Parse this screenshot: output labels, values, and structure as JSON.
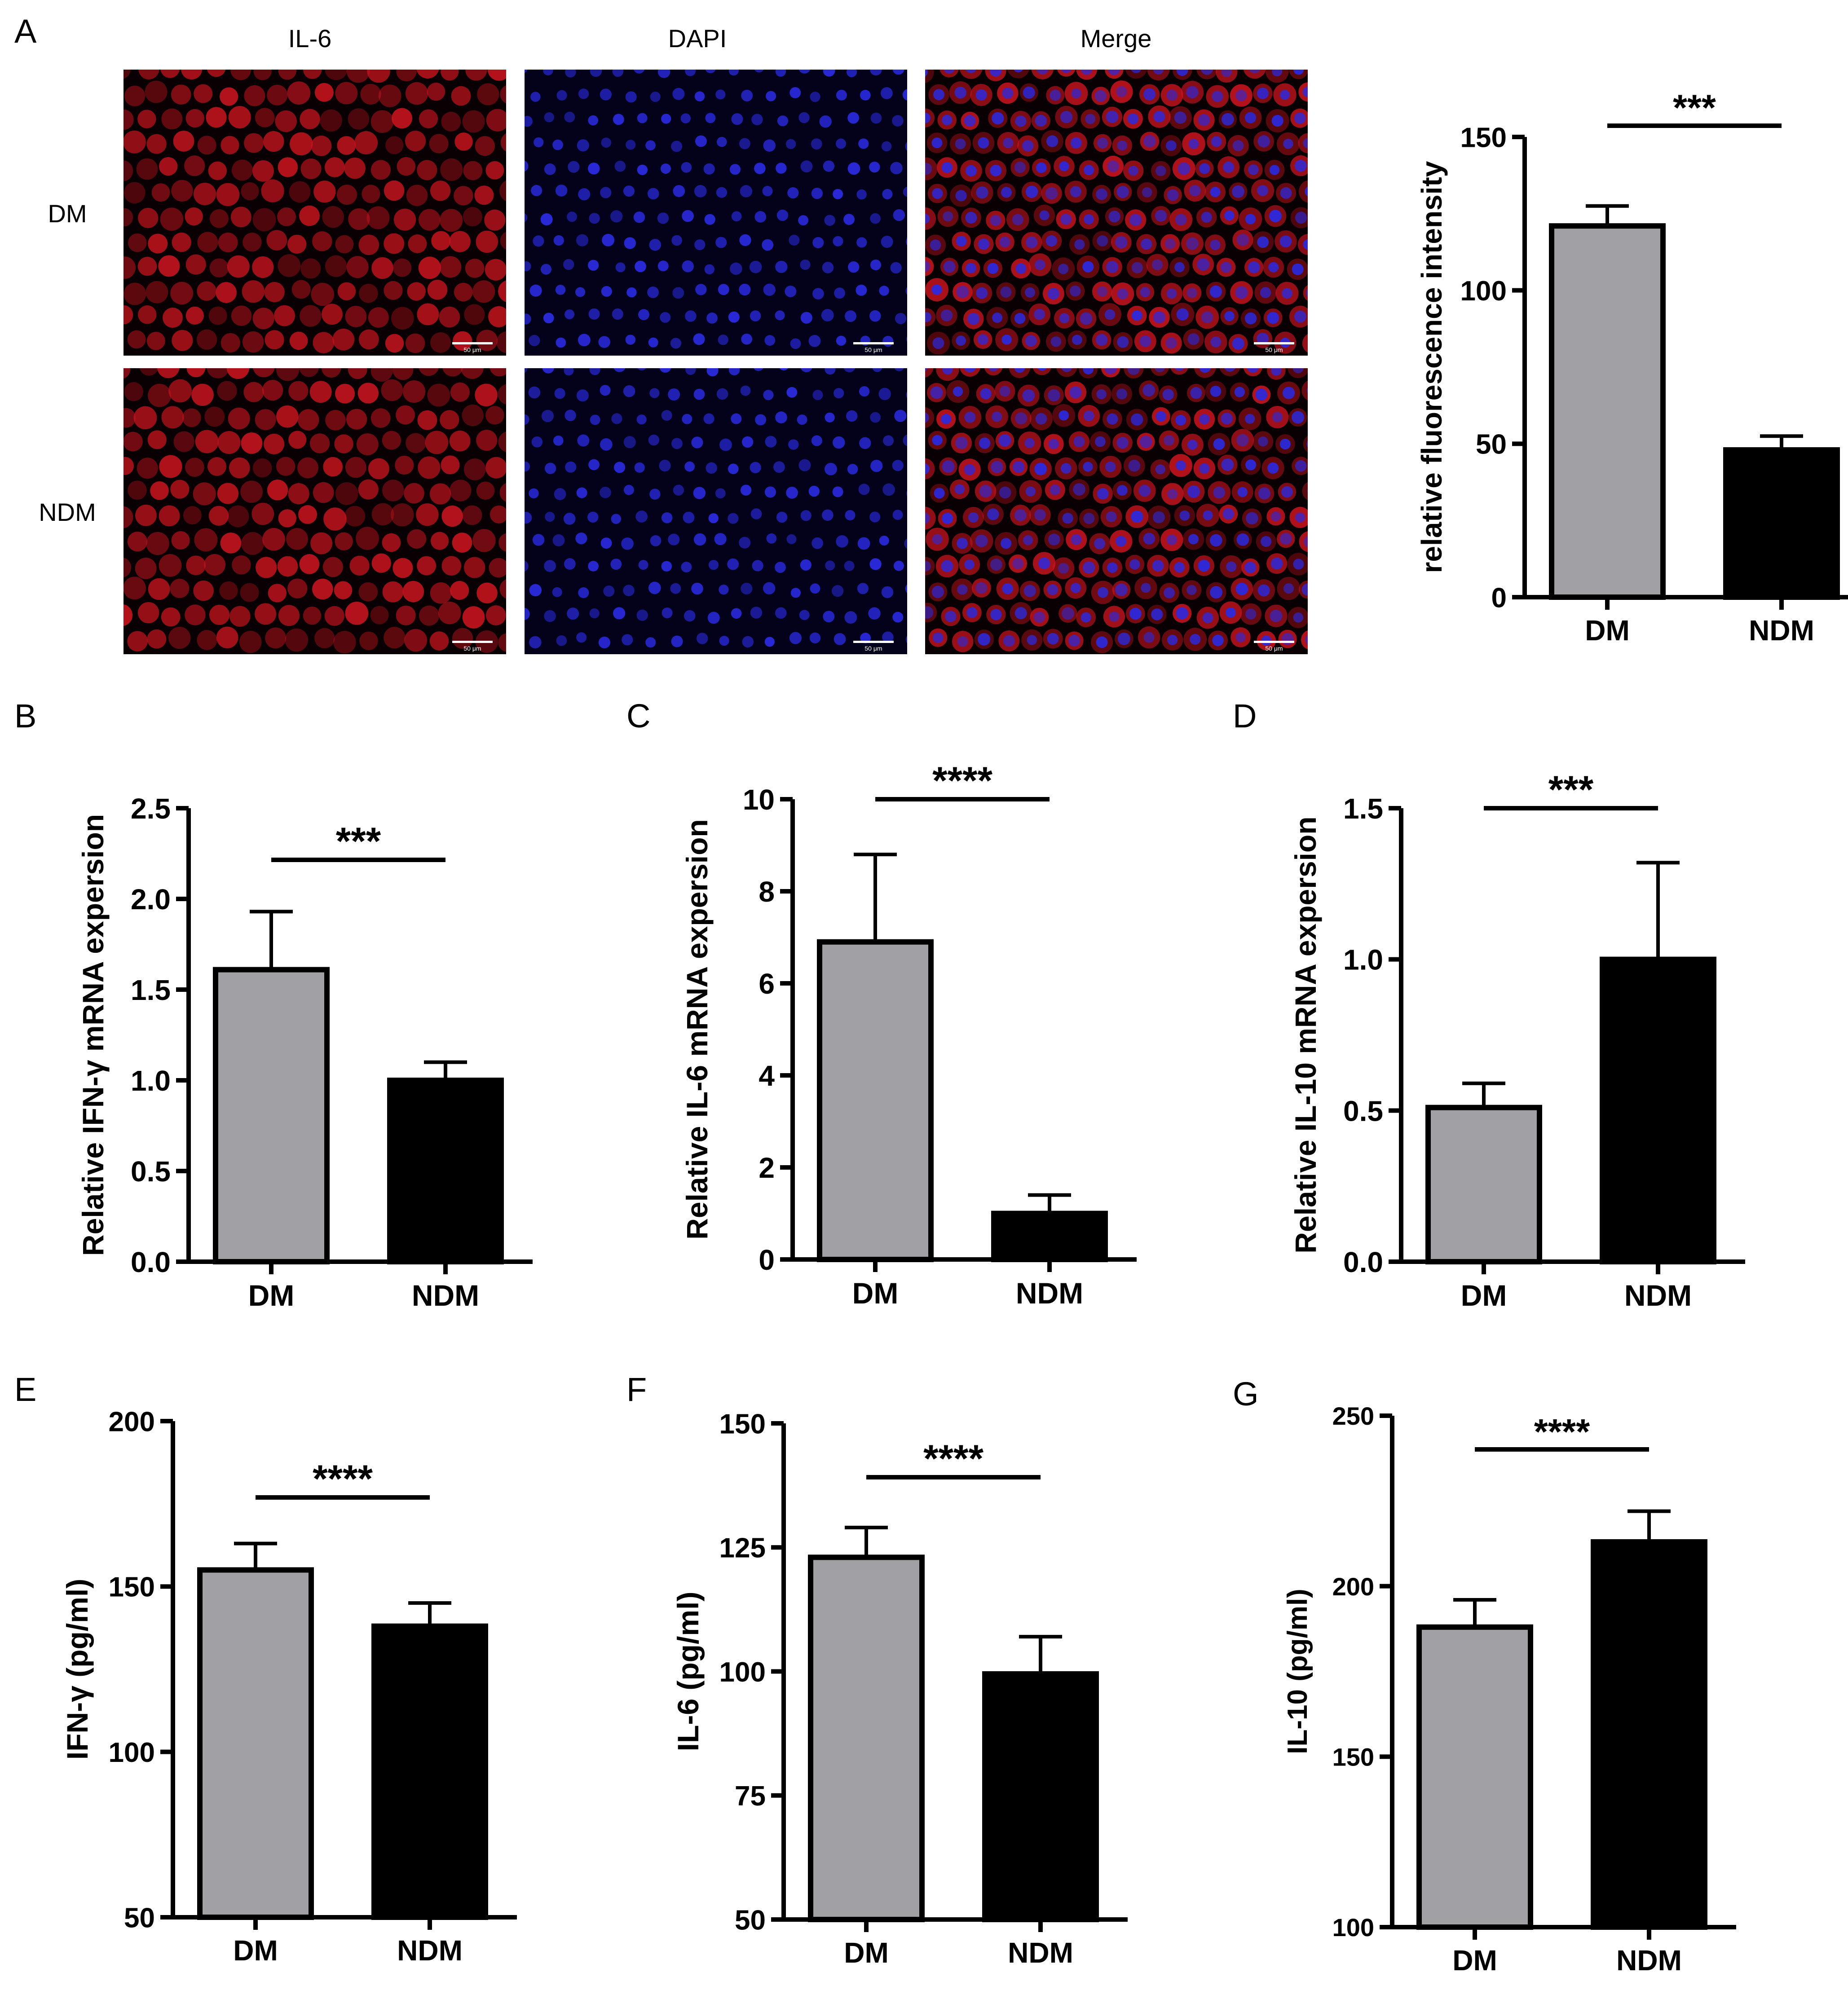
{
  "figure": {
    "panel_letters": [
      "A",
      "B",
      "C",
      "D",
      "E",
      "F",
      "G"
    ],
    "micrographs": {
      "columns": [
        "IL-6",
        "DAPI",
        "Merge"
      ],
      "rows": [
        "DM",
        "NDM"
      ],
      "scale_bar_label": "50 μm"
    }
  },
  "colors": {
    "dm_bar": "#a0a0a5",
    "ndm_bar": "#000000",
    "il6_stain": "#c8141e",
    "dapi_stain": "#2a2ae0",
    "stain_background": "#080003"
  },
  "chart_data": [
    {
      "panel": "A",
      "type": "bar",
      "categories": [
        "DM",
        "NDM"
      ],
      "values": [
        121,
        48
      ],
      "errors": [
        6.5,
        4.5
      ],
      "ylabel": "relative fluorescence intensity",
      "ylim": [
        0,
        150
      ],
      "yticks": [
        "0",
        "50",
        "100",
        "150"
      ],
      "significance": "***"
    },
    {
      "panel": "B",
      "type": "bar",
      "categories": [
        "DM",
        "NDM"
      ],
      "values": [
        1.61,
        1.0
      ],
      "errors": [
        0.32,
        0.1
      ],
      "ylabel": "Relative IFN-γ mRNA expersion",
      "ylim": [
        0,
        2.5
      ],
      "yticks": [
        "0.0",
        "0.5",
        "1.0",
        "1.5",
        "2.0",
        "2.5"
      ],
      "significance": "***"
    },
    {
      "panel": "C",
      "type": "bar",
      "categories": [
        "DM",
        "NDM"
      ],
      "values": [
        6.9,
        1.0
      ],
      "errors": [
        1.9,
        0.4
      ],
      "ylabel": "Relative IL-6 mRNA expersion",
      "ylim": [
        0,
        10
      ],
      "yticks": [
        "0",
        "2",
        "4",
        "6",
        "8",
        "10"
      ],
      "significance": "****"
    },
    {
      "panel": "D",
      "type": "bar",
      "categories": [
        "DM",
        "NDM"
      ],
      "values": [
        0.51,
        1.0
      ],
      "errors": [
        0.08,
        0.32
      ],
      "ylabel": "Relative IL-10 mRNA expersion",
      "ylim": [
        0,
        1.5
      ],
      "yticks": [
        "0.0",
        "0.5",
        "1.0",
        "1.5"
      ],
      "significance": "***"
    },
    {
      "panel": "E",
      "type": "bar",
      "categories": [
        "DM",
        "NDM"
      ],
      "values": [
        155,
        138
      ],
      "errors": [
        8,
        7
      ],
      "ylabel": "IFN-γ (pg/ml)",
      "ylim": [
        50,
        200
      ],
      "yticks": [
        "50",
        "100",
        "150",
        "200"
      ],
      "significance": "****"
    },
    {
      "panel": "F",
      "type": "bar",
      "categories": [
        "DM",
        "NDM"
      ],
      "values": [
        123,
        99.5
      ],
      "errors": [
        6,
        7.5
      ],
      "ylabel": "IL-6 (pg/ml)",
      "ylim": [
        50,
        150
      ],
      "yticks": [
        "50",
        "75",
        "100",
        "125",
        "150"
      ],
      "significance": "****"
    },
    {
      "panel": "G",
      "type": "bar",
      "categories": [
        "DM",
        "NDM"
      ],
      "values": [
        188,
        213
      ],
      "errors": [
        8,
        9
      ],
      "ylabel": "IL-10 (pg/ml)",
      "ylim": [
        100,
        250
      ],
      "yticks": [
        "100",
        "150",
        "200",
        "250"
      ],
      "significance": "****"
    }
  ]
}
